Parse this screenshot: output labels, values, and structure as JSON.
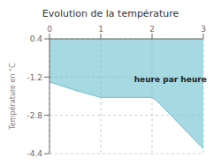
{
  "chart_data": {
    "type": "area",
    "title": "Evolution de la température",
    "ylabel": "Température en °C",
    "x": [
      0,
      0.5,
      1,
      2,
      2.1,
      3
    ],
    "values": [
      -1.4,
      -1.75,
      -2.05,
      -2.05,
      -2.2,
      -4.2
    ],
    "fill_top": 0.4,
    "color": "#6bbfcf",
    "xlim": [
      0,
      3
    ],
    "xticks": [
      0,
      1,
      2,
      3
    ],
    "ylim": [
      -4.4,
      0.4
    ],
    "yticks": [
      0.4,
      -1.2,
      -2.8,
      -4.4
    ],
    "grid": true,
    "annotations": [
      {
        "text": "heure par heure",
        "x": 1.65,
        "y": -1.3
      }
    ]
  }
}
